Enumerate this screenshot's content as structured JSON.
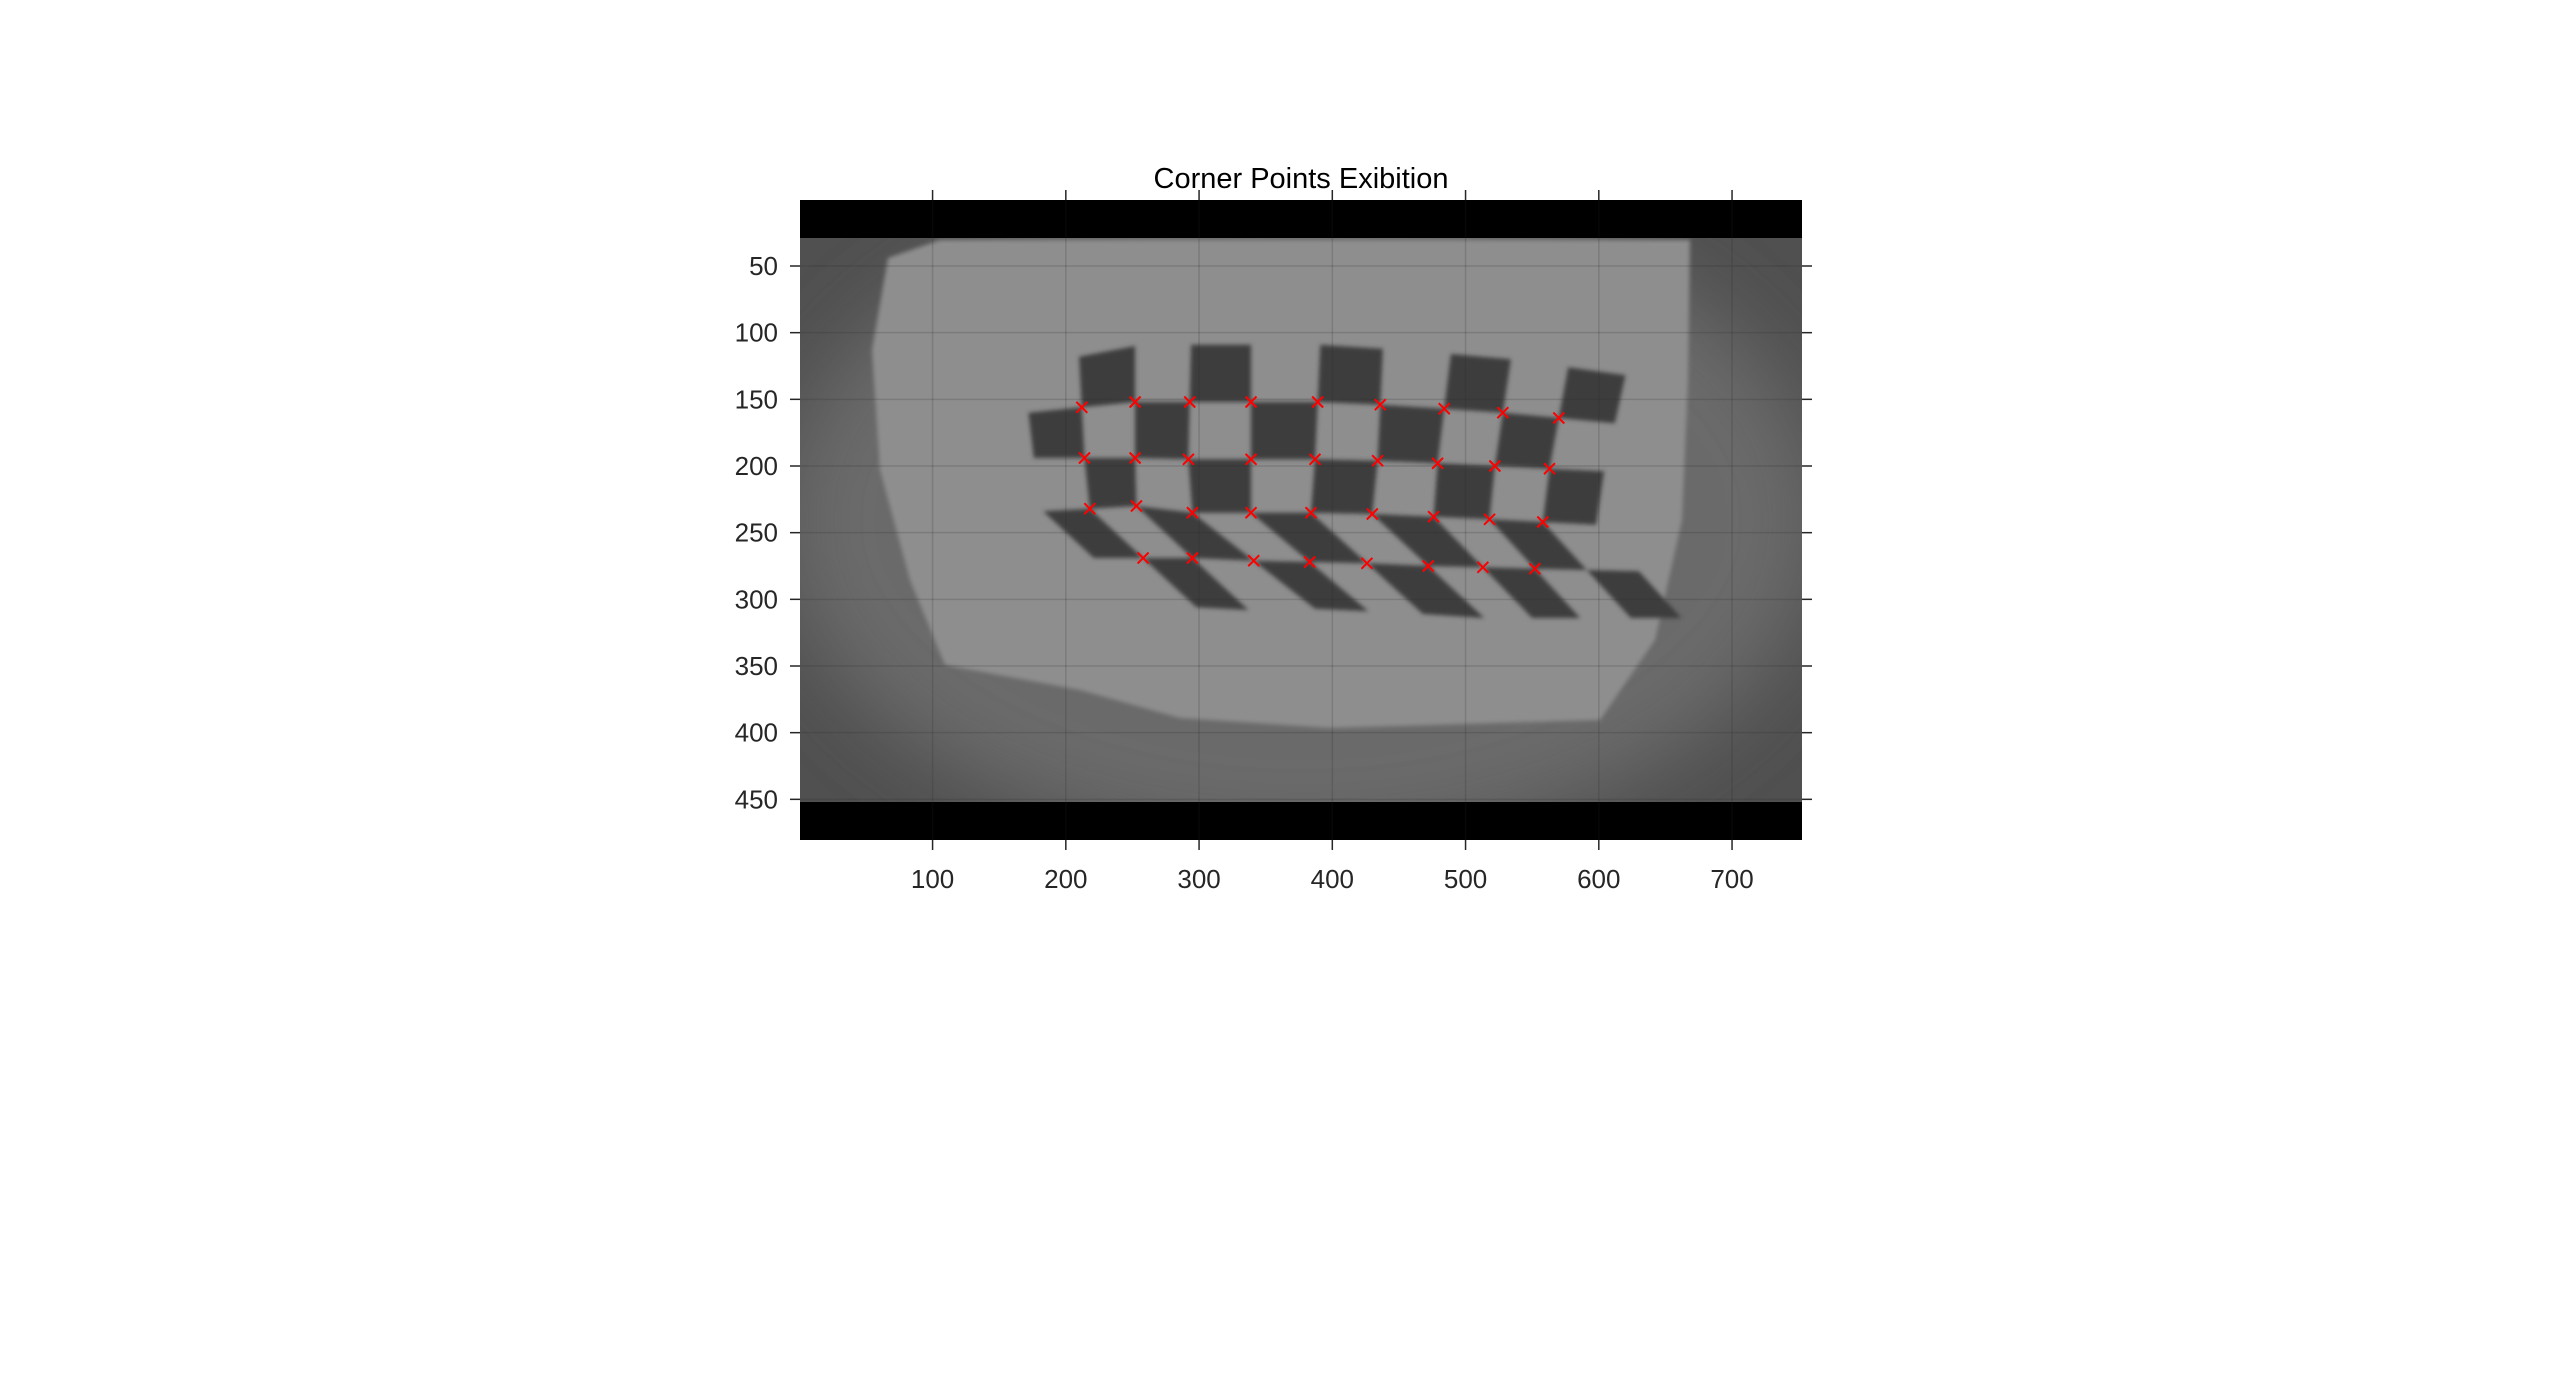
{
  "chart_data": {
    "type": "scatter",
    "title": "Corner Points Exibition",
    "xlabel": "",
    "ylabel": "",
    "xlim": [
      0.5,
      752.5
    ],
    "ylim": [
      0.5,
      480.5
    ],
    "y_reversed": true,
    "grid": true,
    "background": "grayscale fisheye image of a checkerboard calibration target with black letterbox bars at top and bottom",
    "xticks": [
      100,
      200,
      300,
      400,
      500,
      600,
      700
    ],
    "yticks": [
      50,
      100,
      150,
      200,
      250,
      300,
      350,
      400,
      450
    ],
    "marker": "x",
    "marker_color": "#ff0000",
    "series": [
      {
        "x": [
          212,
          252,
          293,
          339,
          389,
          436,
          484,
          528,
          570,
          214,
          252,
          292,
          339,
          387,
          434,
          479,
          522,
          563,
          218,
          253,
          295,
          339,
          384,
          430,
          476,
          518,
          558,
          258,
          295,
          341,
          383,
          426,
          472,
          513,
          552
        ],
        "y": [
          156,
          152,
          152,
          152,
          152,
          154,
          157,
          160,
          164,
          194,
          194,
          195,
          195,
          195,
          196,
          198,
          200,
          202,
          232,
          230,
          235,
          235,
          235,
          236,
          238,
          240,
          242,
          269,
          269,
          271,
          272,
          273,
          275,
          276,
          277
        ]
      }
    ],
    "colors": {
      "marker": "#ff0000",
      "grid": "#262626",
      "axis": "#262626",
      "letterbox": "#000000"
    }
  }
}
